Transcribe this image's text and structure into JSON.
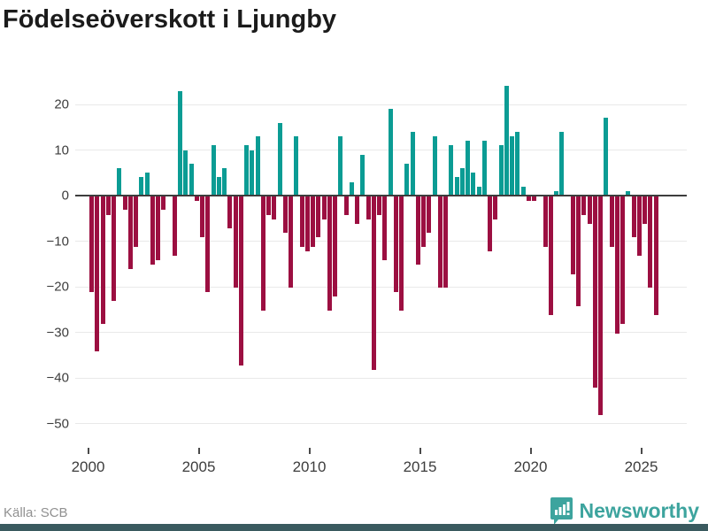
{
  "header": {
    "title": "Födelseöverskott i Ljungby"
  },
  "footer": {
    "source_label": "Källa: SCB",
    "brand": "Newsworthy"
  },
  "colors": {
    "positive": "#0b9c94",
    "negative": "#9c0f41",
    "brand": "#3da49e",
    "bottom_band": "#3a5a5f",
    "grid": "#e9e9e9",
    "axis": "#3d3d3d",
    "title": "#1b1b1b",
    "source_text": "#919191"
  },
  "chart_data": {
    "type": "bar",
    "title": "Födelseöverskott i Ljungby",
    "xlabel": "",
    "ylabel": "",
    "period": "quarterly",
    "x_start": "2000-Q1",
    "x_end": "2025-Q3",
    "ylim": [
      -50,
      25
    ],
    "grid": true,
    "legend": false,
    "y_tick_values": [
      20,
      10,
      0,
      -10,
      -20,
      -30,
      -40,
      -50
    ],
    "y_tick_labels": [
      "20",
      "10",
      "0",
      "−10",
      "−20",
      "−30",
      "−40",
      "−50"
    ],
    "x_tick_years": [
      "2000",
      "2005",
      "2010",
      "2015",
      "2020",
      "2025"
    ],
    "series_by_year": [
      {
        "year": 2000,
        "q": [
          -21,
          -34,
          -28,
          -4
        ]
      },
      {
        "year": 2001,
        "q": [
          -23,
          6,
          -3,
          -16
        ]
      },
      {
        "year": 2002,
        "q": [
          -11,
          4,
          5,
          -15
        ]
      },
      {
        "year": 2003,
        "q": [
          -14,
          -3,
          0,
          -13
        ]
      },
      {
        "year": 2004,
        "q": [
          23,
          10,
          7,
          -1
        ]
      },
      {
        "year": 2005,
        "q": [
          -9,
          -21,
          11,
          4
        ]
      },
      {
        "year": 2006,
        "q": [
          6,
          -7,
          -20,
          -37
        ]
      },
      {
        "year": 2007,
        "q": [
          11,
          10,
          13,
          -25
        ]
      },
      {
        "year": 2008,
        "q": [
          -4,
          -5,
          16,
          -8
        ]
      },
      {
        "year": 2009,
        "q": [
          -20,
          13,
          -11,
          -12
        ]
      },
      {
        "year": 2010,
        "q": [
          -11,
          -9,
          -5,
          -25
        ]
      },
      {
        "year": 2011,
        "q": [
          -22,
          13,
          -4,
          3
        ]
      },
      {
        "year": 2012,
        "q": [
          -6,
          9,
          -5,
          -38
        ]
      },
      {
        "year": 2013,
        "q": [
          -4,
          -14,
          19,
          -21
        ]
      },
      {
        "year": 2014,
        "q": [
          -25,
          7,
          14,
          -15
        ]
      },
      {
        "year": 2015,
        "q": [
          -11,
          -8,
          13,
          -20
        ]
      },
      {
        "year": 2016,
        "q": [
          -20,
          11,
          4,
          6
        ]
      },
      {
        "year": 2017,
        "q": [
          12,
          5,
          2,
          12
        ]
      },
      {
        "year": 2018,
        "q": [
          -12,
          -5,
          11,
          24
        ]
      },
      {
        "year": 2019,
        "q": [
          13,
          14,
          2,
          -1
        ]
      },
      {
        "year": 2020,
        "q": [
          -1,
          0,
          -11,
          -26
        ]
      },
      {
        "year": 2021,
        "q": [
          1,
          14,
          0,
          -17
        ]
      },
      {
        "year": 2022,
        "q": [
          -24,
          -4,
          -6,
          -42
        ]
      },
      {
        "year": 2023,
        "q": [
          -48,
          17,
          -11,
          -30
        ]
      },
      {
        "year": 2024,
        "q": [
          -28,
          1,
          -9,
          -13
        ]
      },
      {
        "year": 2025,
        "q": [
          -6,
          -20,
          -26
        ]
      }
    ]
  }
}
